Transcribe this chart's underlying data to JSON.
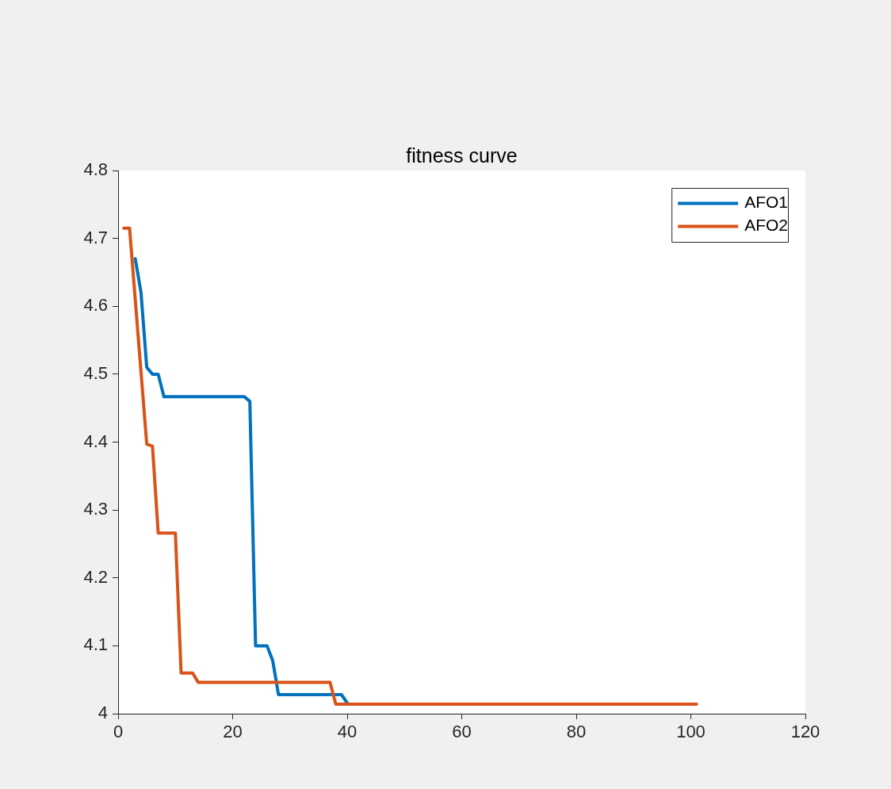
{
  "chart_data": {
    "type": "line",
    "title": "fitness curve",
    "xlim": [
      0,
      120
    ],
    "xticks": [
      0,
      20,
      40,
      60,
      80,
      100,
      120
    ],
    "ylim": [
      4,
      4.8
    ],
    "yticks": [
      4,
      4.1,
      4.2,
      4.3,
      4.4,
      4.5,
      4.6,
      4.7,
      4.8
    ],
    "grid": false,
    "legend": "top right",
    "marker": "none",
    "line_style": "solid",
    "series": [
      {
        "name": "AFO1",
        "color": "#0072bd",
        "x": [
          3,
          4,
          5,
          6,
          7,
          8,
          22,
          23,
          24,
          26,
          27,
          28,
          39,
          40
        ],
        "values": [
          4.67,
          4.62,
          4.51,
          4.5,
          4.5,
          4.467,
          4.467,
          4.46,
          4.1,
          4.1,
          4.078,
          4.028,
          4.028,
          4.016
        ]
      },
      {
        "name": "AFO2",
        "color": "#d95319",
        "x": [
          1,
          2,
          5,
          6,
          7,
          10,
          11,
          13,
          14,
          37,
          38,
          101
        ],
        "values": [
          4.715,
          4.715,
          4.397,
          4.394,
          4.266,
          4.266,
          4.06,
          4.06,
          4.046,
          4.046,
          4.014,
          4.014
        ]
      }
    ]
  }
}
